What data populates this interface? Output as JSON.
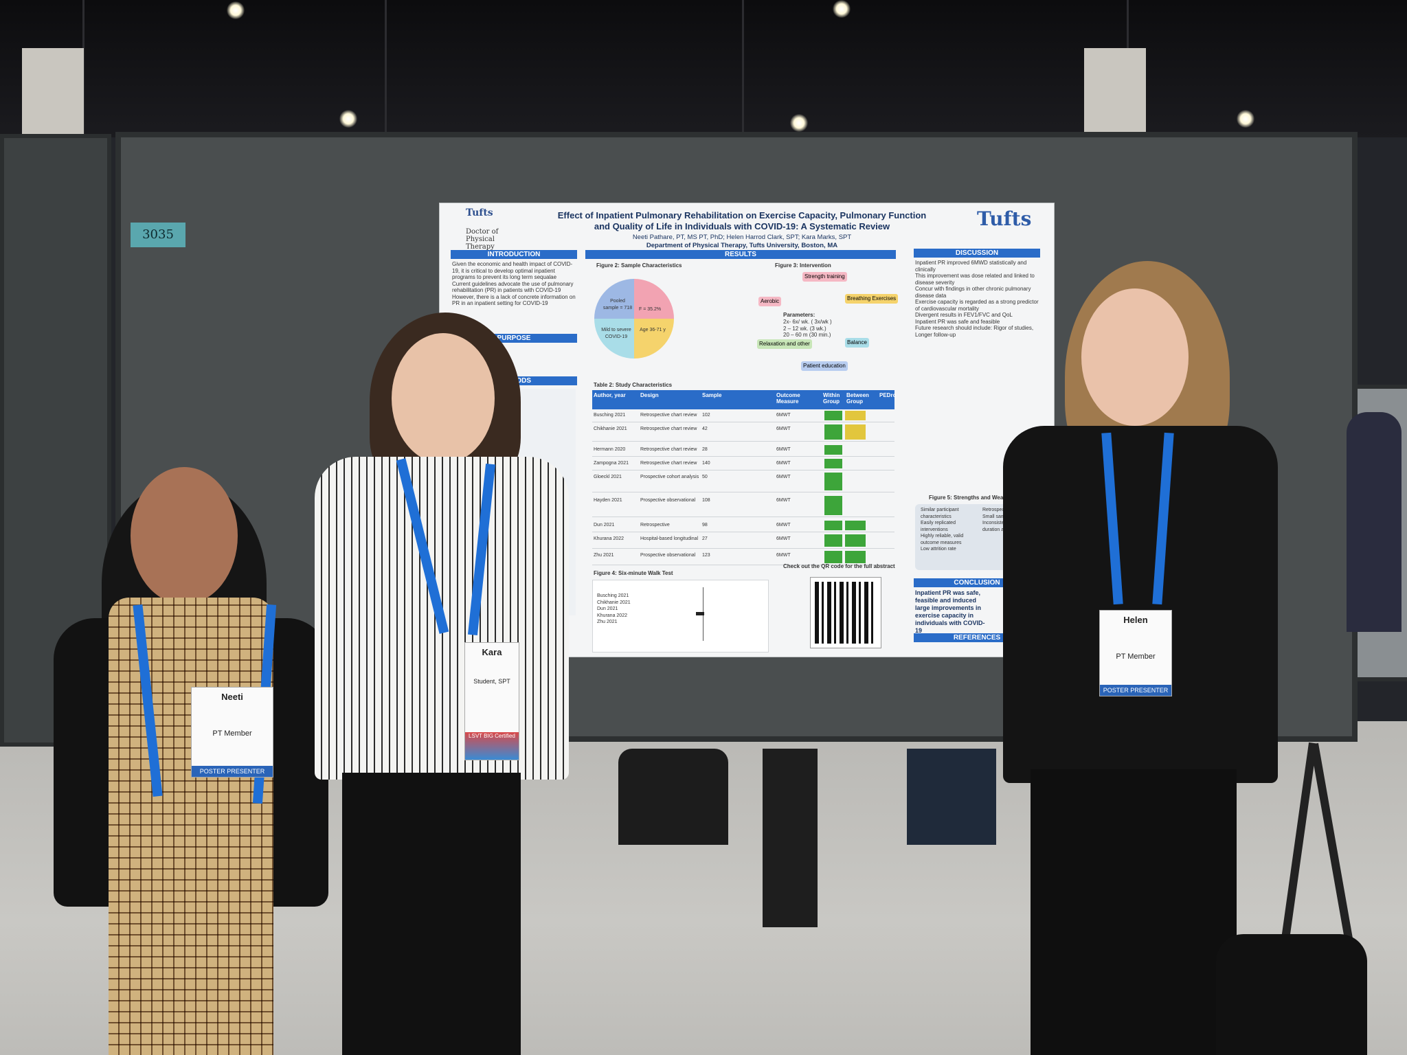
{
  "scene": {
    "board_number": "3035"
  },
  "poster": {
    "logo_top": "Tufts",
    "logo_sub": "Doctor of Physical Therapy Program",
    "title_line1": "Effect of Inpatient Pulmonary Rehabilitation on Exercise Capacity, Pulmonary Function",
    "title_line2": "and Quality of Life in Individuals with COVID-19: A Systematic Review",
    "authors": "Neeti Pathare, PT, MS PT, PhD; Helen Harrod Clark, SPT; Kara Marks, SPT",
    "department": "Department of Physical Therapy, Tufts University, Boston, MA",
    "tufts_logo": "Tufts",
    "sections": {
      "introduction": "INTRODUCTION",
      "purpose": "PURPOSE",
      "methods": "METHODS",
      "results": "RESULTS",
      "discussion": "DISCUSSION",
      "conclusion": "CONCLUSION",
      "references": "REFERENCES"
    },
    "intro_bullets": [
      "Given the economic and health impact of COVID-19, it is critical to develop optimal inpatient programs to prevent its long term sequalae",
      "Current guidelines advocate the use of pulmonary rehabilitation (PR) in patients with COVID-19",
      "However, there is a lack of concrete information on PR in an inpatient setting for COVID-19"
    ],
    "figure2_label": "Figure 2: Sample Characteristics",
    "pie_labels": [
      "Pooled sample = 718",
      "F = 35.2%",
      "Mild to severe COVID-19",
      "Age 36-71 y"
    ],
    "figure3_label": "Figure 3: Intervention",
    "intervention_items": [
      "Strength training",
      "Breathing Exercises",
      "Aerobic",
      "Balance",
      "Relaxation and other",
      "Patient education"
    ],
    "parameters_title": "Parameters:",
    "parameters": [
      "2x- 6x/ wk. ( 3x/wk )",
      "2 – 12 wk. (3 wk.)",
      "20 – 60 m (30 min.)"
    ],
    "table2_label": "Table 2: Study Characteristics",
    "table_headers": [
      "Author, year",
      "Design",
      "Sample",
      "Outcome Measure",
      "Within Group",
      "Between Group",
      "PEDro"
    ],
    "table_rows": [
      [
        "Busching 2021",
        "Retrospective chart review",
        "102",
        "6MWT"
      ],
      [
        "Chikhanie 2021",
        "Retrospective chart review",
        "42",
        "6MWT"
      ],
      [
        "Hermann 2020",
        "Retrospective chart review",
        "28",
        "6MWT"
      ],
      [
        "Zampogna 2021",
        "Retrospective chart review",
        "140",
        "6MWT"
      ],
      [
        "Gloeckl 2021",
        "Prospective cohort analysis",
        "50",
        "6MWT"
      ],
      [
        "Hayden 2021",
        "Prospective observational",
        "108",
        "6MWT"
      ],
      [
        "Dun 2021",
        "Retrospective",
        "98",
        "6MWT"
      ],
      [
        "Khurana 2022",
        "Hospital-based longitudinal",
        "27",
        "6MWT"
      ],
      [
        "Zhu 2021",
        "Prospective observational",
        "123",
        "6MWT"
      ]
    ],
    "figure4_label": "Figure 4: Six-minute Walk Test",
    "forest_studies": [
      "Busching 2021",
      "Chikhanie 2021",
      "Dun 2021",
      "Khurana 2022",
      "Zhu 2021"
    ],
    "qr_caption": "Check out the QR code for the full abstract",
    "figure5_label": "Figure 5: Strengths and Weaknesses",
    "strengths": [
      "Similar participant characteristics",
      "Easily replicated interventions",
      "Highly reliable, valid outcome measures",
      "Low attrition rate"
    ],
    "weaknesses": [
      "Retrospective designs",
      "Small sample sizes",
      "Inconsistent treatment duration and protocols"
    ],
    "discussion_bullets": [
      "Inpatient PR improved 6MWD statistically and clinically",
      "This improvement was dose related and linked to disease severity",
      "Concur with findings in other chronic pulmonary disease data",
      "Exercise capacity is regarded as a strong predictor of cardiovascular mortality",
      "Divergent results in FEV1/FVC and QoL",
      "Inpatient PR was safe and feasible",
      "Future research should include: Rigor of studies, Longer follow-up"
    ],
    "conclusion_text": "Inpatient PR was safe, feasible and induced large improvements in exercise capacity in individuals with COVID-19"
  },
  "people": [
    {
      "badge_name": "Neeti",
      "badge_role": "PT Member",
      "badge_strip": "POSTER PRESENTER"
    },
    {
      "badge_name": "Kara",
      "badge_role": "Student, SPT",
      "badge_strip": "LSVT BIG Certified"
    },
    {
      "badge_name": "Helen",
      "badge_role": "PT Member",
      "badge_strip": "POSTER PRESENTER"
    }
  ],
  "colors": {
    "poster_blue": "#2a6cc8",
    "board_gray": "#4a4e4f",
    "lanyard_blue": "#1f6fd6",
    "board_number_bg": "#5aa7ae"
  }
}
